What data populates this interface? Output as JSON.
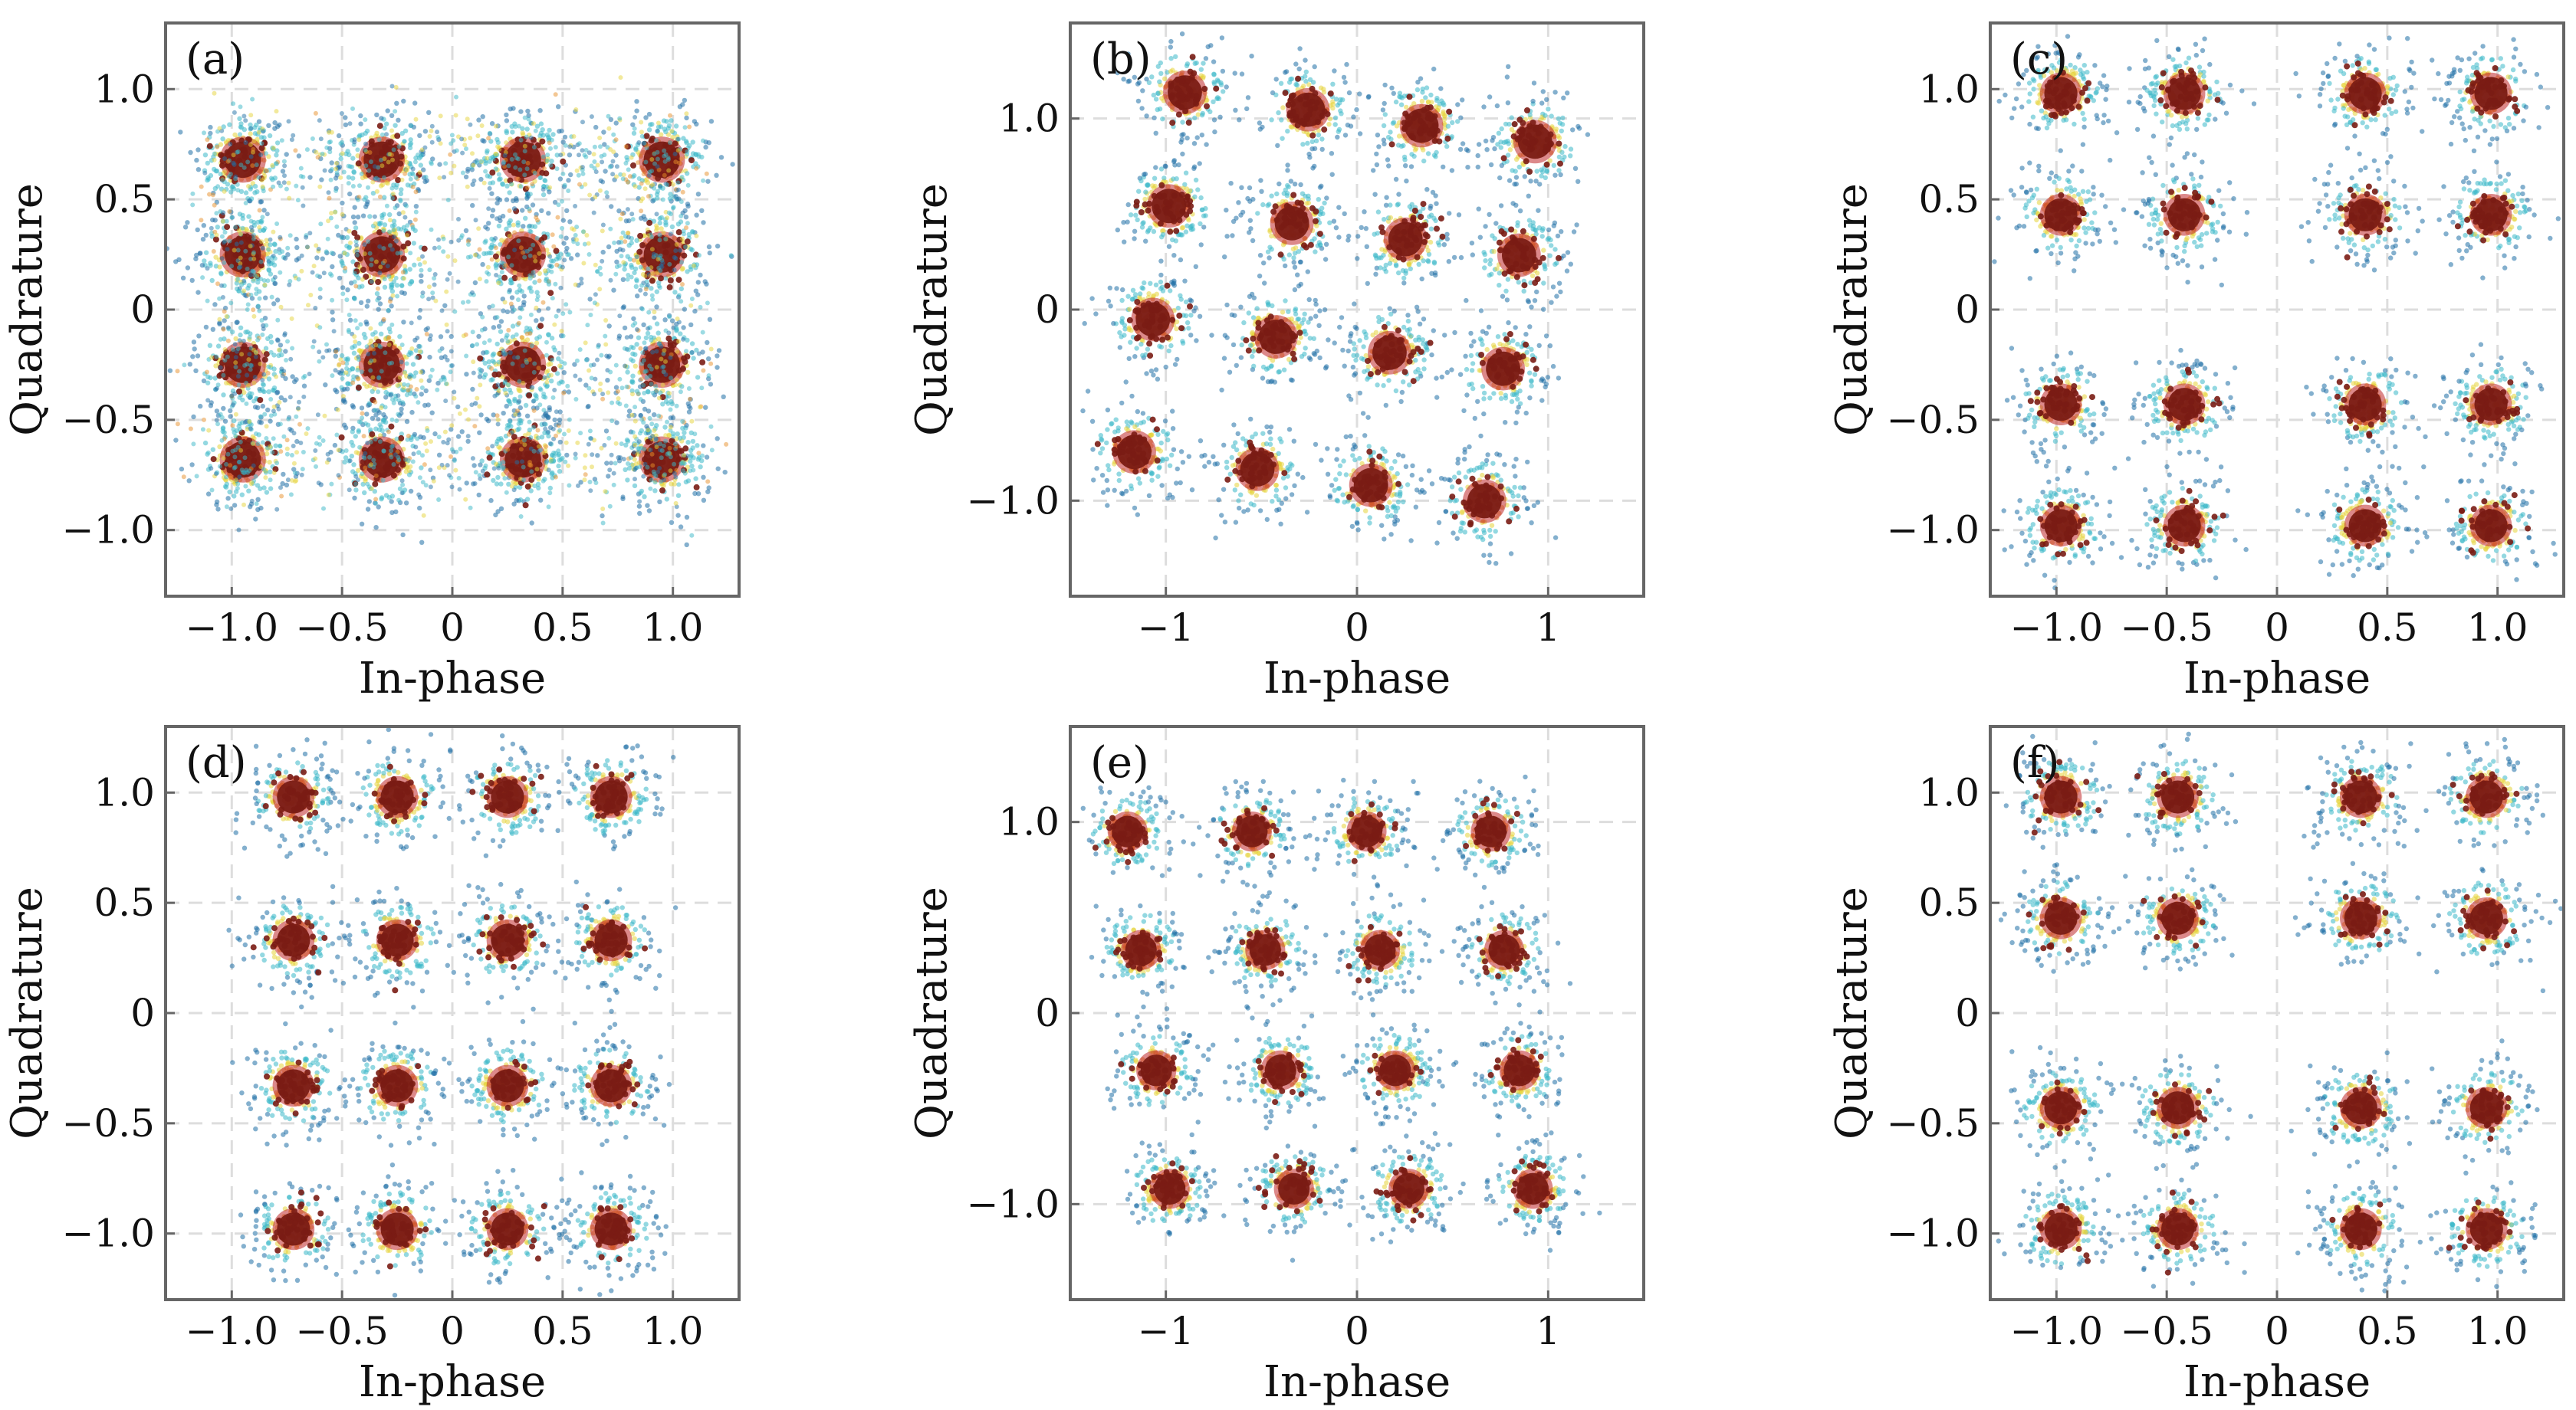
{
  "chart_data": [
    {
      "type": "scatter",
      "panel_label": "(a)",
      "xlabel": "In-phase",
      "ylabel": "Quadrature",
      "xlim": [
        -1.3,
        1.3
      ],
      "ylim": [
        -1.3,
        1.3
      ],
      "xticks": [
        -1.0,
        -0.5,
        0,
        0.5,
        1.0
      ],
      "xtick_labels": [
        "−1.0",
        "−0.5",
        "0",
        "0.5",
        "1.0"
      ],
      "yticks": [
        -1.0,
        -0.5,
        0,
        0.5,
        1.0
      ],
      "ytick_labels": [
        "−1.0",
        "−0.5",
        "0",
        "0.5",
        "1.0"
      ],
      "grid": true,
      "x_centers": [
        -0.95,
        -0.32,
        0.32,
        0.95
      ],
      "y_centers": [
        0.68,
        0.25,
        -0.25,
        -0.68
      ],
      "spread": 0.11,
      "outer_ring": true
    },
    {
      "type": "scatter",
      "panel_label": "(b)",
      "xlabel": "In-phase",
      "ylabel": "Quadrature",
      "xlim": [
        -1.5,
        1.5
      ],
      "ylim": [
        -1.5,
        1.5
      ],
      "xticks": [
        -1,
        0,
        1
      ],
      "xtick_labels": [
        "−1",
        "0",
        "1"
      ],
      "yticks": [
        -1.0,
        0,
        1.0
      ],
      "ytick_labels": [
        "−1.0",
        "0",
        "1.0"
      ],
      "grid": true,
      "x_centers": [
        -1.05,
        -0.4,
        0.2,
        0.8
      ],
      "y_centers": [
        1.0,
        0.4,
        -0.2,
        -0.9
      ],
      "rotation_deg": -8,
      "spread": 0.12,
      "outer_ring": false
    },
    {
      "type": "scatter",
      "panel_label": "(c)",
      "xlabel": "In-phase",
      "ylabel": "Quadrature",
      "xlim": [
        -1.3,
        1.3
      ],
      "ylim": [
        -1.3,
        1.3
      ],
      "xticks": [
        -1.0,
        -0.5,
        0,
        0.5,
        1.0
      ],
      "xtick_labels": [
        "−1.0",
        "−0.5",
        "0",
        "0.5",
        "1.0"
      ],
      "yticks": [
        -1.0,
        -0.5,
        0,
        0.5,
        1.0
      ],
      "ytick_labels": [
        "−1.0",
        "−0.5",
        "0",
        "0.5",
        "1.0"
      ],
      "grid": true,
      "x_centers": [
        -0.98,
        -0.42,
        0.4,
        0.97
      ],
      "y_centers": [
        0.98,
        0.43,
        -0.43,
        -0.98
      ],
      "spread": 0.1,
      "outer_ring": false
    },
    {
      "type": "scatter",
      "panel_label": "(d)",
      "xlabel": "In-phase",
      "ylabel": "Quadrature",
      "xlim": [
        -1.3,
        1.3
      ],
      "ylim": [
        -1.3,
        1.3
      ],
      "xticks": [
        -1.0,
        -0.5,
        0,
        0.5,
        1.0
      ],
      "xtick_labels": [
        "−1.0",
        "−0.5",
        "0",
        "0.5",
        "1.0"
      ],
      "yticks": [
        -1.0,
        -0.5,
        0,
        0.5,
        1.0
      ],
      "ytick_labels": [
        "−1.0",
        "−0.5",
        "0",
        "0.5",
        "1.0"
      ],
      "grid": true,
      "x_centers": [
        -0.72,
        -0.25,
        0.25,
        0.72
      ],
      "y_centers": [
        0.98,
        0.33,
        -0.33,
        -0.98
      ],
      "spread": 0.1,
      "outer_ring": false
    },
    {
      "type": "scatter",
      "panel_label": "(e)",
      "xlabel": "In-phase",
      "ylabel": "Quadrature",
      "xlim": [
        -1.5,
        1.5
      ],
      "ylim": [
        -1.5,
        1.5
      ],
      "xticks": [
        -1,
        0,
        1
      ],
      "xtick_labels": [
        "−1",
        "0",
        "1"
      ],
      "yticks": [
        -1.0,
        0,
        1.0
      ],
      "ytick_labels": [
        "−1.0",
        "0",
        "1.0"
      ],
      "grid": true,
      "x_centers": [
        -1.2,
        -0.55,
        0.05,
        0.7
      ],
      "x_shift_per_row": [
        0,
        0.07,
        0.15,
        0.22
      ],
      "y_centers": [
        0.95,
        0.33,
        -0.3,
        -0.92
      ],
      "spread": 0.11,
      "outer_ring": false
    },
    {
      "type": "scatter",
      "panel_label": "(f)",
      "xlabel": "In-phase",
      "ylabel": "Quadrature",
      "xlim": [
        -1.3,
        1.3
      ],
      "ylim": [
        -1.3,
        1.3
      ],
      "xticks": [
        -1.0,
        -0.5,
        0,
        0.5,
        1.0
      ],
      "xtick_labels": [
        "−1.0",
        "−0.5",
        "0",
        "0.5",
        "1.0"
      ],
      "yticks": [
        -1.0,
        -0.5,
        0,
        0.5,
        1.0
      ],
      "ytick_labels": [
        "−1.0",
        "−0.5",
        "0",
        "0.5",
        "1.0"
      ],
      "grid": true,
      "x_centers": [
        -0.98,
        -0.45,
        0.38,
        0.95
      ],
      "y_centers": [
        0.98,
        0.43,
        -0.43,
        -0.98
      ],
      "spread": 0.1,
      "outer_ring": false
    }
  ],
  "colors": {
    "core": "#7a1c14",
    "red": "#c0282a",
    "orange": "#e8902a",
    "yellow": "#e6d43a",
    "cyan": "#3ab8c8",
    "blue": "#1f6fa6",
    "frame": "#666666",
    "grid": "#dddddd"
  }
}
